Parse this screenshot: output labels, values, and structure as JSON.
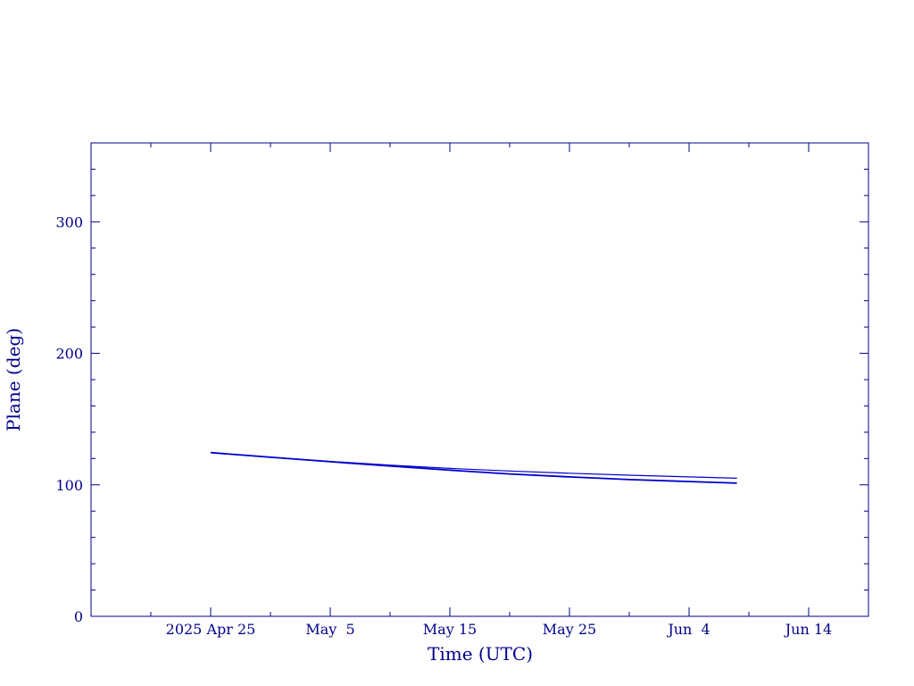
{
  "chart_data": {
    "type": "line",
    "xlabel": "Time (UTC)",
    "ylabel": "Plane (deg)",
    "xlim": [
      "2025-04-15",
      "2025-06-19"
    ],
    "ylim": [
      0,
      360
    ],
    "x_major_ticks": [
      {
        "date": "2025-04-25",
        "label": "2025 Apr 25"
      },
      {
        "date": "2025-05-05",
        "label": "May  5"
      },
      {
        "date": "2025-05-15",
        "label": "May 15"
      },
      {
        "date": "2025-05-25",
        "label": "May 25"
      },
      {
        "date": "2025-06-04",
        "label": "Jun  4"
      },
      {
        "date": "2025-06-14",
        "label": "Jun 14"
      }
    ],
    "x_minor_ticks": [
      "2025-04-20",
      "2025-04-30",
      "2025-05-10",
      "2025-05-20",
      "2025-05-30",
      "2025-06-09",
      "2025-06-19"
    ],
    "y_major_ticks": [
      0,
      100,
      200,
      300
    ],
    "y_minor_step": 20,
    "grid": false,
    "colors": {
      "axes": "#00008b",
      "series": "#0000cc"
    },
    "series": [
      {
        "points": [
          [
            "2025-04-25",
            124.5
          ],
          [
            "2025-04-30",
            121.0
          ],
          [
            "2025-05-05",
            117.8
          ],
          [
            "2025-05-10",
            115.0
          ],
          [
            "2025-05-15",
            112.5
          ],
          [
            "2025-05-20",
            110.5
          ],
          [
            "2025-05-25",
            108.8
          ],
          [
            "2025-05-30",
            107.3
          ],
          [
            "2025-06-04",
            106.0
          ],
          [
            "2025-06-08",
            105.0
          ]
        ]
      },
      {
        "points": [
          [
            "2025-04-25",
            124.5
          ],
          [
            "2025-04-30",
            121.0
          ],
          [
            "2025-05-05",
            117.6
          ],
          [
            "2025-05-10",
            114.3
          ],
          [
            "2025-05-15",
            111.1
          ],
          [
            "2025-05-20",
            108.3
          ],
          [
            "2025-05-25",
            106.0
          ],
          [
            "2025-05-30",
            104.0
          ],
          [
            "2025-06-04",
            102.5
          ],
          [
            "2025-06-08",
            101.3
          ]
        ]
      }
    ]
  }
}
